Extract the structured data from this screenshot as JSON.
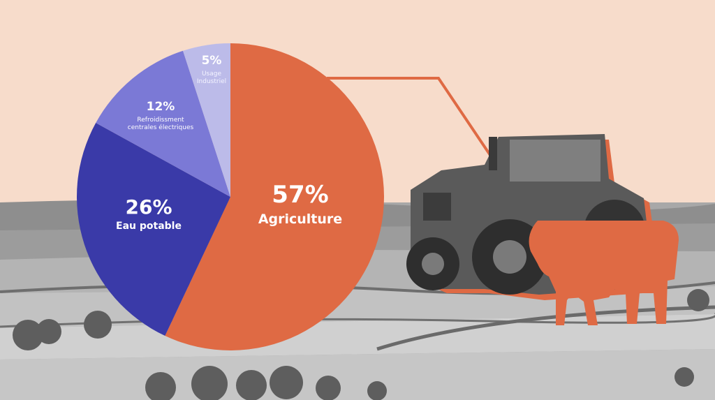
{
  "chart_data": {
    "type": "pie",
    "title": "",
    "slices": [
      {
        "percent_label": "57%",
        "name_lines": [
          "Agriculture"
        ],
        "value": 57,
        "color": "#df6a44"
      },
      {
        "percent_label": "26%",
        "name_lines": [
          "Eau potable"
        ],
        "value": 26,
        "color": "#3a3aa8"
      },
      {
        "percent_label": "12%",
        "name_lines": [
          "Refroidissment",
          "centrales électriques"
        ],
        "value": 12,
        "color": "#7b79d6"
      },
      {
        "percent_label": "5%",
        "name_lines": [
          "Usage",
          "Industriel"
        ],
        "value": 5,
        "color": "#bcbbe9"
      }
    ]
  },
  "colors": {
    "sky": "#f7dccb",
    "field_light": "#b9b9b9",
    "field_dark": "#8a8a8a",
    "accent": "#df6a44"
  },
  "illustrations": [
    "tractor-photo",
    "cow-silhouette"
  ]
}
